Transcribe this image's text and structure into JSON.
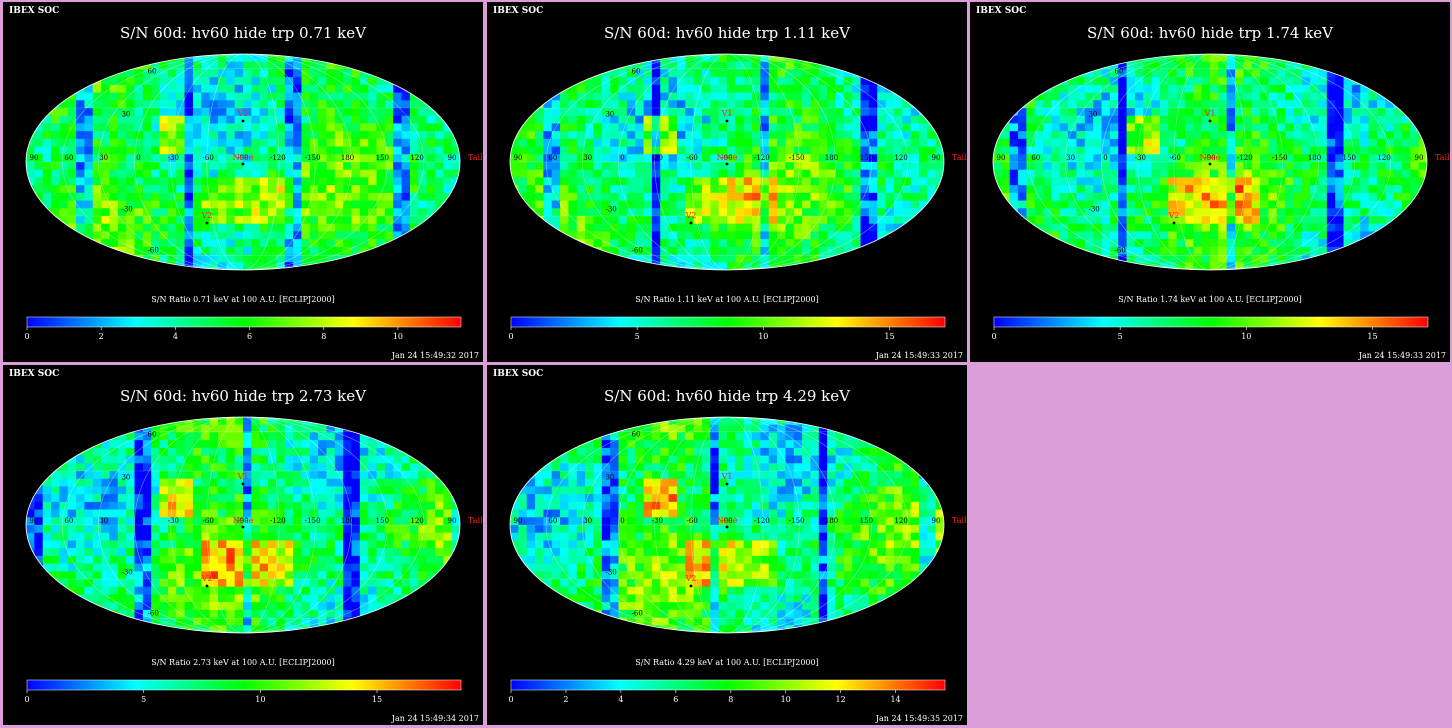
{
  "chart_data": [
    {
      "type": "heatmap",
      "projection": "mollweide",
      "header_label": "IBEX SOC",
      "title": "S/N  60d: hv60 hide trp 0.71 keV",
      "colorbar_label": "S/N Ratio 0.71 keV at 100 A.U. [ECLIPJ2000]",
      "colorbar_ticks": [
        "0",
        "2",
        "4",
        "6",
        "8",
        "10"
      ],
      "colorbar_range": [
        0,
        11.7
      ],
      "timestamp": "Jan 24 15:49:32 2017",
      "markers": [
        "V1",
        "V2",
        "Nose",
        "Tail"
      ],
      "longitude_labels": [
        "90",
        "60",
        "30",
        "0",
        "-30",
        "-60",
        "-90",
        "-120",
        "-150",
        "180",
        "150",
        "120",
        "90"
      ],
      "latitude_labels": [
        "60",
        "30",
        "-30",
        "-60"
      ]
    },
    {
      "type": "heatmap",
      "projection": "mollweide",
      "header_label": "IBEX SOC",
      "title": "S/N  60d: hv60 hide trp 1.11 keV",
      "colorbar_label": "S/N Ratio 1.11 keV at 100 A.U. [ECLIPJ2000]",
      "colorbar_ticks": [
        "0",
        "5",
        "10",
        "15"
      ],
      "colorbar_range": [
        0,
        17.2
      ],
      "timestamp": "Jan 24 15:49:33 2017",
      "markers": [
        "V1",
        "V2",
        "Nose",
        "Tail"
      ],
      "longitude_labels": [
        "90",
        "60",
        "30",
        "0",
        "-30",
        "-60",
        "-90",
        "-120",
        "-150",
        "180",
        "150",
        "120",
        "90"
      ],
      "latitude_labels": [
        "60",
        "30",
        "-30",
        "-60"
      ]
    },
    {
      "type": "heatmap",
      "projection": "mollweide",
      "header_label": "IBEX SOC",
      "title": "S/N  60d: hv60 hide trp 1.74 keV",
      "colorbar_label": "S/N Ratio 1.74 keV at 100 A.U. [ECLIPJ2000]",
      "colorbar_ticks": [
        "0",
        "5",
        "10",
        "15"
      ],
      "colorbar_range": [
        0,
        17.2
      ],
      "timestamp": "Jan 24 15:49:33 2017",
      "markers": [
        "V1",
        "V2",
        "Nose",
        "Tail"
      ],
      "longitude_labels": [
        "90",
        "60",
        "30",
        "0",
        "-30",
        "-60",
        "-90",
        "-120",
        "-150",
        "180",
        "150",
        "120",
        "90"
      ],
      "latitude_labels": [
        "60",
        "30",
        "-30",
        "-60"
      ]
    },
    {
      "type": "heatmap",
      "projection": "mollweide",
      "header_label": "IBEX SOC",
      "title": "S/N  60d: hv60 hide trp 2.73 keV",
      "colorbar_label": "S/N Ratio 2.73 keV at 100 A.U. [ECLIPJ2000]",
      "colorbar_ticks": [
        "0",
        "5",
        "10",
        "15"
      ],
      "colorbar_range": [
        0,
        18.6
      ],
      "timestamp": "Jan 24 15:49:34 2017",
      "markers": [
        "V1",
        "V2",
        "Nose",
        "Tail"
      ],
      "longitude_labels": [
        "90",
        "60",
        "30",
        "0",
        "-30",
        "-60",
        "-90",
        "-120",
        "-150",
        "180",
        "150",
        "120",
        "90"
      ],
      "latitude_labels": [
        "60",
        "30",
        "-30",
        "-60"
      ]
    },
    {
      "type": "heatmap",
      "projection": "mollweide",
      "header_label": "IBEX SOC",
      "title": "S/N  60d: hv60 hide trp 4.29 keV",
      "colorbar_label": "S/N Ratio 4.29 keV at 100 A.U. [ECLIPJ2000]",
      "colorbar_ticks": [
        "0",
        "2",
        "4",
        "6",
        "8",
        "10",
        "12",
        "14"
      ],
      "colorbar_range": [
        0,
        15.8
      ],
      "timestamp": "Jan 24 15:49:35 2017",
      "markers": [
        "V1",
        "V2",
        "Nose",
        "Tail"
      ],
      "longitude_labels": [
        "90",
        "60",
        "30",
        "0",
        "-30",
        "-60",
        "-90",
        "-120",
        "-150",
        "180",
        "150",
        "120",
        "90"
      ],
      "latitude_labels": [
        "60",
        "30",
        "-30",
        "-60"
      ]
    }
  ],
  "colors": {
    "page_background": "#dc9ed9",
    "panel_background": "#000000",
    "marker": "#ff2020",
    "colormap": [
      "#0000ff",
      "#00ffff",
      "#00ff00",
      "#ffff00",
      "#ff0000"
    ]
  }
}
